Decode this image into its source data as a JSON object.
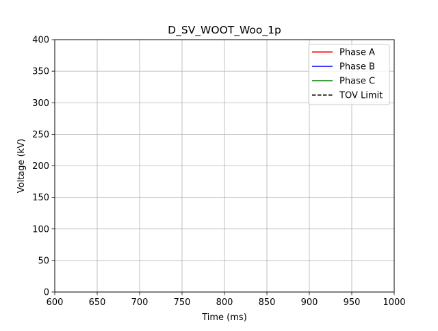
{
  "chart_data": {
    "type": "line",
    "title": "D_SV_WOOT_Woo_1p",
    "xlabel": "Time (ms)",
    "ylabel": "Voltage (kV)",
    "xlim": [
      600,
      1000
    ],
    "ylim": [
      0,
      400
    ],
    "x_ticks": [
      600,
      650,
      700,
      750,
      800,
      850,
      900,
      950,
      1000
    ],
    "y_ticks": [
      0,
      50,
      100,
      150,
      200,
      250,
      300,
      350,
      400
    ],
    "grid": true,
    "legend_position": "top-right",
    "series": [
      {
        "name": "Phase A",
        "color": "#ff0000",
        "line_style": "solid",
        "x": [],
        "y": []
      },
      {
        "name": "Phase B",
        "color": "#0000ff",
        "line_style": "solid",
        "x": [],
        "y": []
      },
      {
        "name": "Phase C",
        "color": "#008000",
        "line_style": "solid",
        "x": [],
        "y": []
      },
      {
        "name": "TOV Limit",
        "color": "#000000",
        "line_style": "dashed",
        "x": [],
        "y": []
      }
    ]
  }
}
